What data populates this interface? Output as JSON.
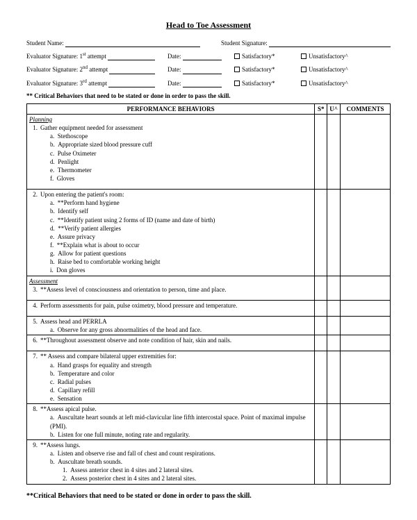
{
  "title": "Head to Toe Assessment",
  "header": {
    "student_name_label": "Student Name:",
    "student_sig_label": "Student Signature:",
    "eval_attempts": [
      {
        "sig_label": "Evaluator Signature: 1",
        "sup": "st",
        "rest": " attempt",
        "date_label": "Date:",
        "sat": "Satisfactory*",
        "unsat": "Unsatisfactory^"
      },
      {
        "sig_label": "Evaluator Signature: 2",
        "sup": "nd",
        "rest": " attempt",
        "date_label": "Date:",
        "sat": "Satisfactory*",
        "unsat": "Unsatisfactory^"
      },
      {
        "sig_label": "Evaluator Signature: 3",
        "sup": "rd",
        "rest": " attempt",
        "date_label": "Date:",
        "sat": "Satisfactory*",
        "unsat": "Unsatisfactory^"
      }
    ],
    "critical_note": "** Critical Behaviors that need to be stated or done in order to pass the skill."
  },
  "table": {
    "headers": {
      "perf": "PERFORMANCE BEHAVIORS",
      "s": "S*",
      "u": "U^",
      "c": "COMMENTS"
    },
    "sections": {
      "planning": "Planning",
      "assessment": "Assessment"
    }
  },
  "items": {
    "i1": {
      "num": "1.",
      "text": "Gather equipment needed for assessment",
      "subs": [
        [
          "a.",
          "Stethoscope"
        ],
        [
          "b.",
          "Appropriate sized blood pressure cuff"
        ],
        [
          "c.",
          "Pulse Oximeter"
        ],
        [
          "d.",
          "Penlight"
        ],
        [
          "e.",
          "Thermometer"
        ],
        [
          "f.",
          "Gloves"
        ]
      ]
    },
    "i2": {
      "num": "2.",
      "text": "Upon entering the patient's room:",
      "subs": [
        [
          "a.",
          "**Perform hand hygiene"
        ],
        [
          "b.",
          "Identify self"
        ],
        [
          "c.",
          "**Identify patient using 2 forms of ID (name and date of birth)"
        ],
        [
          "d.",
          "**Verify patient allergies"
        ],
        [
          "e.",
          "Assure privacy"
        ],
        [
          "f.",
          "**Explain what is about to occur"
        ],
        [
          "g.",
          "Allow for patient questions"
        ],
        [
          "h.",
          "Raise bed to comfortable working height"
        ],
        [
          "i.",
          "Don gloves"
        ]
      ]
    },
    "i3": {
      "num": "3.",
      "text": "**Assess level of consciousness and orientation to person, time and place."
    },
    "i4": {
      "num": "4.",
      "text": "Perform assessments for pain, pulse oximetry, blood pressure and temperature."
    },
    "i5": {
      "num": "5.",
      "text": "Assess head and PERRLA",
      "subs": [
        [
          "a.",
          "Observe for any gross abnormalities of the head and face."
        ]
      ]
    },
    "i6": {
      "num": "6.",
      "text": "**Throughout assessment observe and note condition of hair, skin and nails."
    },
    "i7": {
      "num": "7.",
      "text": "**  Assess and compare bilateral upper extremities for:",
      "subs": [
        [
          "a.",
          "Hand grasps for equality and strength"
        ],
        [
          "b.",
          "Temperature and color"
        ],
        [
          "c.",
          "Radial pulses"
        ],
        [
          "d.",
          "Capillary refill"
        ],
        [
          "e.",
          "Sensation"
        ]
      ]
    },
    "i8": {
      "num": "8.",
      "text": "**Assess apical pulse.",
      "subs": [
        [
          "a.",
          "Auscultate heart sounds at left mid-clavicular line fifth intercostal space.  Point of maximal impulse (PMI)."
        ],
        [
          "b.",
          "Listen for one full minute, noting rate and regularity."
        ]
      ]
    },
    "i9": {
      "num": "9.",
      "text": "**Assess lungs.",
      "subs": [
        [
          "a.",
          "Listen and observe rise and fall of chest and count respirations."
        ],
        [
          "b.",
          "Auscultate breath sounds."
        ]
      ],
      "subnums": [
        [
          "1.",
          "Assess anterior chest in 4 sites and 2 lateral sites."
        ],
        [
          "2.",
          "Assess posterior chest in 4 sites and 2 lateral sites."
        ]
      ]
    }
  },
  "footnote": "**Critical Behaviors that need to be stated or done in order to pass the skill."
}
